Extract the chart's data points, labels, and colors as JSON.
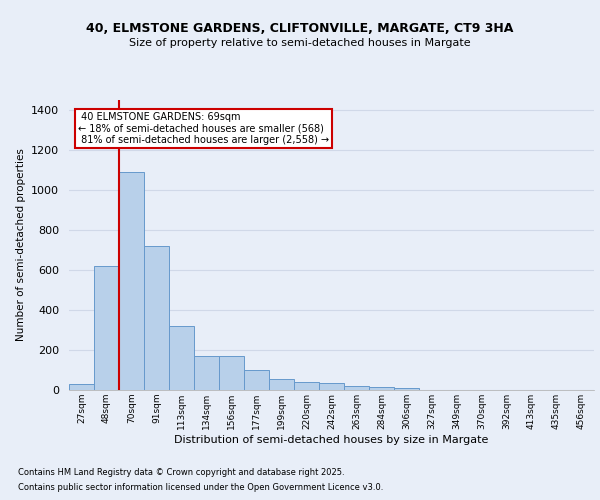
{
  "title1": "40, ELMSTONE GARDENS, CLIFTONVILLE, MARGATE, CT9 3HA",
  "title2": "Size of property relative to semi-detached houses in Margate",
  "xlabel": "Distribution of semi-detached houses by size in Margate",
  "ylabel": "Number of semi-detached properties",
  "bin_labels": [
    "27sqm",
    "48sqm",
    "70sqm",
    "91sqm",
    "113sqm",
    "134sqm",
    "156sqm",
    "177sqm",
    "199sqm",
    "220sqm",
    "242sqm",
    "263sqm",
    "284sqm",
    "306sqm",
    "327sqm",
    "349sqm",
    "370sqm",
    "392sqm",
    "413sqm",
    "435sqm",
    "456sqm"
  ],
  "bar_values": [
    30,
    620,
    1090,
    720,
    320,
    170,
    170,
    100,
    55,
    40,
    35,
    20,
    15,
    12,
    0,
    0,
    0,
    0,
    0,
    0,
    0
  ],
  "bar_color": "#b8d0ea",
  "bar_edge_color": "#6699cc",
  "ylim": [
    0,
    1450
  ],
  "yticks": [
    0,
    200,
    400,
    600,
    800,
    1000,
    1200,
    1400
  ],
  "property_label": "40 ELMSTONE GARDENS: 69sqm",
  "pct_smaller": "18% of semi-detached houses are smaller (568)",
  "pct_larger": "81% of semi-detached houses are larger (2,558)",
  "annotation_box_color": "#ffffff",
  "annotation_box_edge": "#cc0000",
  "red_line_color": "#cc0000",
  "bg_color": "#e8eef8",
  "grid_color": "#d0d8e8",
  "footnote1": "Contains HM Land Registry data © Crown copyright and database right 2025.",
  "footnote2": "Contains public sector information licensed under the Open Government Licence v3.0."
}
